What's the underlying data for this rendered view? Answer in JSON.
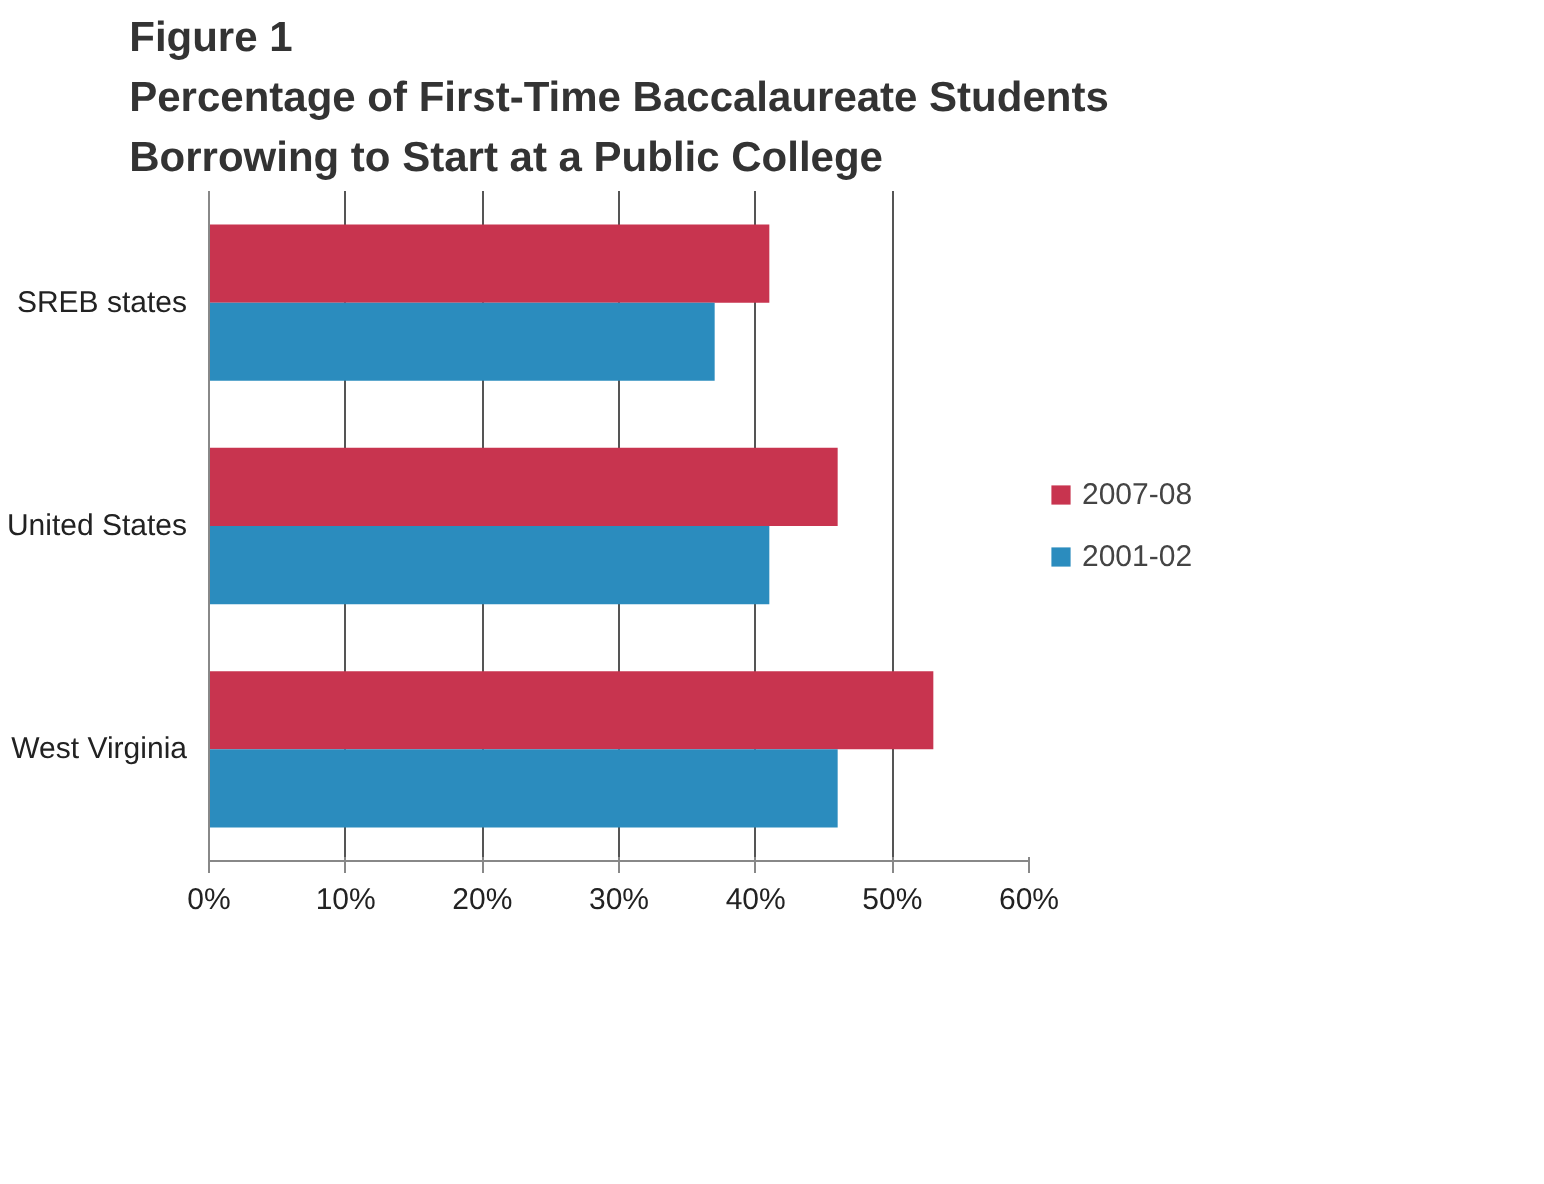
{
  "chart_data": {
    "type": "bar",
    "orientation": "horizontal",
    "title": "Figure 1\nPercentage of First-Time Baccalaureate Students\nBorrowing to Start at a Public College",
    "categories": [
      "SREB states",
      "United States",
      "West Virginia"
    ],
    "series": [
      {
        "name": "2007-08",
        "color": "#c8344f",
        "values": [
          41,
          46,
          53
        ]
      },
      {
        "name": "2001-02",
        "color": "#2b8cbe",
        "values": [
          37,
          41,
          46
        ]
      }
    ],
    "xlim": [
      0,
      60
    ],
    "xticks": [
      {
        "value": 0,
        "label": "0%"
      },
      {
        "value": 10,
        "label": "10%"
      },
      {
        "value": 20,
        "label": "20%"
      },
      {
        "value": 30,
        "label": "30%"
      },
      {
        "value": 40,
        "label": "40%"
      },
      {
        "value": 50,
        "label": "50%"
      },
      {
        "value": 60,
        "label": "60%"
      }
    ],
    "grid": "x",
    "legend": "right"
  }
}
